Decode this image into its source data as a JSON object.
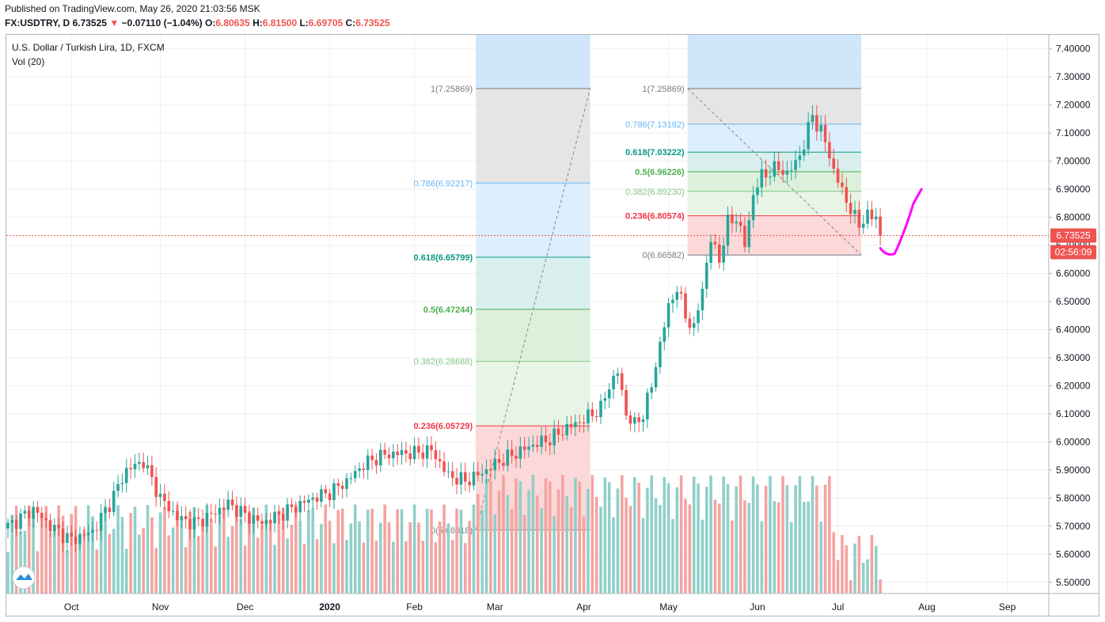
{
  "header": {
    "published": "Published on TradingView.com, May 26, 2020 21:03:56 MSK",
    "symbol": "FX:USDTRY, D",
    "last": "6.73525",
    "change": "−0.07110 (−1.04%)",
    "o_label": "O:",
    "o_value": "6.80635",
    "h_label": "H:",
    "h_value": "6.81500",
    "l_label": "L:",
    "l_value": "6.69705",
    "c_label": "C:",
    "c_value": "6.73525"
  },
  "legend": {
    "title": "U.S. Dollar / Turkish Lira, 1D, FXCM",
    "volume": "Vol (20)"
  },
  "colors": {
    "up": "#26a69a",
    "down": "#ef5350",
    "up_vol": "#8fd0c9",
    "down_vol": "#f4a3a1",
    "grid": "#eceff2",
    "current_price": "#ef5350",
    "drawing": "#ff00ff"
  },
  "chart_data": {
    "type": "candlestick",
    "title": "U.S. Dollar / Turkish Lira, 1D, FXCM",
    "ylim": [
      5.46,
      7.45
    ],
    "y_ticks": [
      "7.40000",
      "7.30000",
      "7.20000",
      "7.10000",
      "7.00000",
      "6.90000",
      "6.80000",
      "6.70000",
      "6.60000",
      "6.50000",
      "6.40000",
      "6.30000",
      "6.20000",
      "6.10000",
      "6.00000",
      "5.90000",
      "5.80000",
      "5.70000",
      "5.60000",
      "5.50000"
    ],
    "x_ticks": [
      "Oct",
      "Nov",
      "Dec",
      "2020",
      "Feb",
      "Mar",
      "Apr",
      "May",
      "Jun",
      "Jul",
      "Aug",
      "Sep"
    ],
    "current_price_label": "6.73525",
    "countdown_label": "02:56:09",
    "price_anchors": [
      [
        0,
        5.7
      ],
      [
        6,
        5.76
      ],
      [
        10,
        5.7
      ],
      [
        15,
        5.65
      ],
      [
        20,
        5.68
      ],
      [
        24,
        5.78
      ],
      [
        28,
        5.9
      ],
      [
        32,
        5.93
      ],
      [
        36,
        5.8
      ],
      [
        40,
        5.73
      ],
      [
        44,
        5.71
      ],
      [
        48,
        5.74
      ],
      [
        52,
        5.78
      ],
      [
        56,
        5.74
      ],
      [
        60,
        5.71
      ],
      [
        64,
        5.74
      ],
      [
        68,
        5.77
      ],
      [
        72,
        5.8
      ],
      [
        76,
        5.82
      ],
      [
        80,
        5.86
      ],
      [
        84,
        5.92
      ],
      [
        88,
        5.95
      ],
      [
        92,
        5.96
      ],
      [
        96,
        5.96
      ],
      [
        100,
        5.97
      ],
      [
        104,
        5.88
      ],
      [
        108,
        5.86
      ],
      [
        112,
        5.89
      ],
      [
        116,
        5.93
      ],
      [
        120,
        5.96
      ],
      [
        124,
        5.99
      ],
      [
        128,
        6.01
      ],
      [
        132,
        6.05
      ],
      [
        136,
        6.08
      ],
      [
        140,
        6.12
      ],
      [
        142,
        6.2
      ],
      [
        144,
        6.25
      ],
      [
        146,
        6.1
      ],
      [
        148,
        6.06
      ],
      [
        150,
        6.1
      ],
      [
        152,
        6.2
      ],
      [
        154,
        6.35
      ],
      [
        156,
        6.48
      ],
      [
        158,
        6.55
      ],
      [
        160,
        6.45
      ],
      [
        162,
        6.4
      ],
      [
        164,
        6.55
      ],
      [
        166,
        6.72
      ],
      [
        168,
        6.65
      ],
      [
        170,
        6.78
      ],
      [
        172,
        6.8
      ],
      [
        174,
        6.7
      ],
      [
        176,
        6.88
      ],
      [
        178,
        6.95
      ],
      [
        180,
        6.96
      ],
      [
        182,
        6.98
      ],
      [
        184,
        6.95
      ],
      [
        186,
        7.0
      ],
      [
        188,
        7.05
      ],
      [
        190,
        7.18
      ],
      [
        191,
        7.12
      ],
      [
        193,
        7.08
      ],
      [
        195,
        6.96
      ],
      [
        197,
        6.9
      ],
      [
        199,
        6.82
      ],
      [
        201,
        6.78
      ],
      [
        203,
        6.8
      ],
      [
        205,
        6.81
      ],
      [
        206,
        6.73525
      ]
    ],
    "volume_scale_max": 1.0,
    "fibs": [
      {
        "name": "fib-feb-mar",
        "levels": [
          {
            "label": "1(7.25869)",
            "value": 7.25869,
            "color": "#787b86",
            "zone": "#e5e5e5"
          },
          {
            "label": "0.786(6.92217)",
            "value": 6.92217,
            "color": "#64b5f6",
            "zone": "#ddeefc"
          },
          {
            "label": "0.618(6.65799)",
            "value": 6.65799,
            "color": "#089981",
            "zone": "#d9efee"
          },
          {
            "label": "0.5(6.47244)",
            "value": 6.47244,
            "color": "#4caf50",
            "zone": "#ddf0dc"
          },
          {
            "label": "0.382(6.28688)",
            "value": 6.28688,
            "color": "#81c784",
            "zone": "#e8f5e6"
          },
          {
            "label": "0.236(6.05729)",
            "value": 6.05729,
            "color": "#f23645",
            "zone": "#fcd8d8"
          },
          {
            "label": "0(5.68618)",
            "value": 5.68618,
            "color": "#787b86",
            "zone": null
          }
        ]
      },
      {
        "name": "fib-may",
        "levels": [
          {
            "label": "1(7.25869)",
            "value": 7.25869,
            "color": "#787b86",
            "zone": "#e5e5e5"
          },
          {
            "label": "0.786(7.13182)",
            "value": 7.13182,
            "color": "#64b5f6",
            "zone": "#ddeefc"
          },
          {
            "label": "0.618(7.03222)",
            "value": 7.03222,
            "color": "#089981",
            "zone": "#d9efee"
          },
          {
            "label": "0.5(6.96226)",
            "value": 6.96226,
            "color": "#4caf50",
            "zone": "#ddf0dc"
          },
          {
            "label": "0.382(6.89230)",
            "value": 6.8923,
            "color": "#81c784",
            "zone": "#e8f5e6"
          },
          {
            "label": "0.236(6.80574)",
            "value": 6.80574,
            "color": "#f23645",
            "zone": "#fcd8d8"
          },
          {
            "label": "0(6.66582)",
            "value": 6.66582,
            "color": "#787b86",
            "zone": null
          }
        ]
      }
    ]
  }
}
